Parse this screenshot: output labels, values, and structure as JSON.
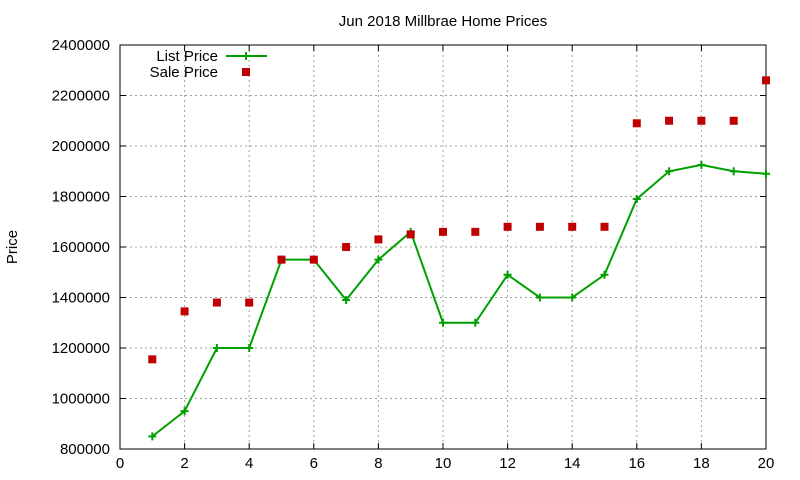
{
  "chart_data": {
    "type": "line",
    "title": "Jun 2018 Millbrae Home Prices",
    "xlabel": "",
    "ylabel": "Price",
    "xlim": [
      0,
      20
    ],
    "ylim": [
      800000,
      2400000
    ],
    "x_ticks": [
      0,
      2,
      4,
      6,
      8,
      10,
      12,
      14,
      16,
      18,
      20
    ],
    "y_ticks": [
      800000,
      1000000,
      1200000,
      1400000,
      1600000,
      1800000,
      2000000,
      2200000,
      2400000
    ],
    "grid": true,
    "legend": "top-left",
    "series": [
      {
        "name": "List Price",
        "style": "line-points",
        "color": "#00a000",
        "marker": "plus",
        "x": [
          1,
          2,
          3,
          4,
          5,
          6,
          7,
          8,
          9,
          10,
          11,
          12,
          13,
          14,
          15,
          16,
          17,
          18,
          19,
          20
        ],
        "values": [
          850000,
          950000,
          1200000,
          1200000,
          1550000,
          1550000,
          1390000,
          1550000,
          1660000,
          1300000,
          1300000,
          1490000,
          1400000,
          1400000,
          1490000,
          1790000,
          1900000,
          1925000,
          1900000,
          1890000
        ]
      },
      {
        "name": "Sale Price",
        "style": "points",
        "color": "#c00000",
        "marker": "square",
        "x": [
          1,
          2,
          3,
          4,
          5,
          6,
          7,
          8,
          9,
          10,
          11,
          12,
          13,
          14,
          15,
          16,
          17,
          18,
          19,
          20
        ],
        "values": [
          1155000,
          1345000,
          1380000,
          1380000,
          1550000,
          1550000,
          1600000,
          1630000,
          1650000,
          1660000,
          1660000,
          1680000,
          1680000,
          1680000,
          1680000,
          2090000,
          2100000,
          2100000,
          2100000,
          2260000
        ]
      }
    ]
  }
}
